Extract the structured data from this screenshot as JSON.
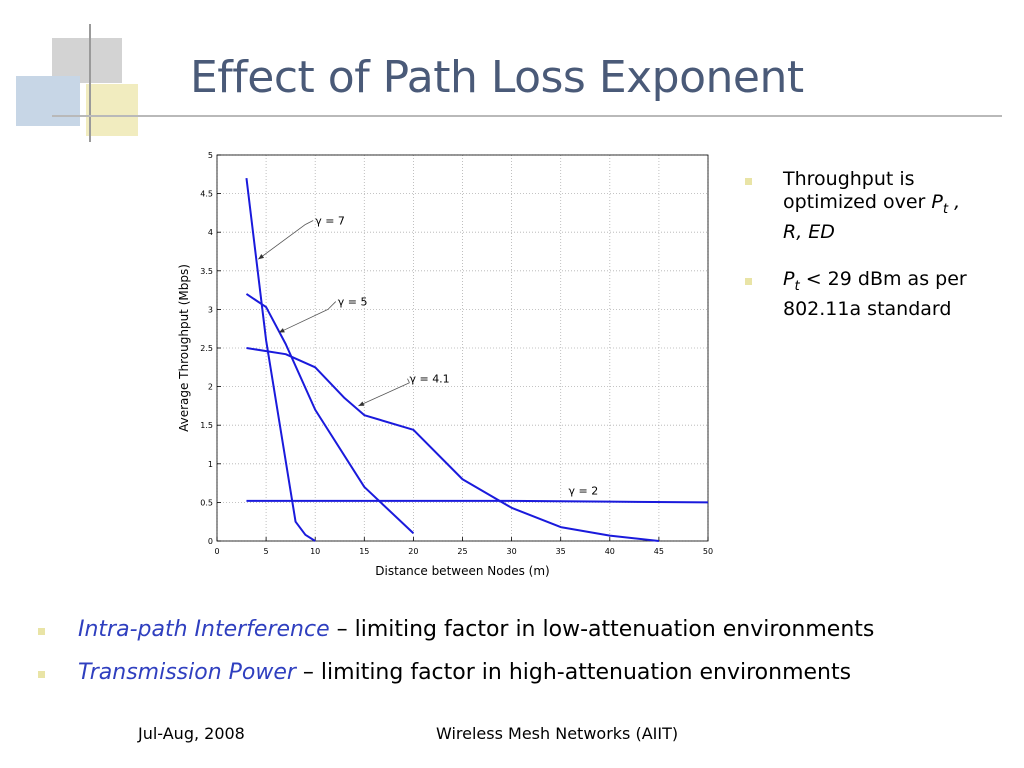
{
  "slide": {
    "title": "Effect of Path Loss Exponent"
  },
  "bullets_right": [
    {
      "text": "Throughput is optimized over "
    },
    {
      "text": " < 29 dBm as per 802.11a standard"
    }
  ],
  "bullets_right_math": {
    "p": "P",
    "t": "t",
    "rest": " , R, ED"
  },
  "bullets_bottom": [
    {
      "emphasis": "Intra-path Interference",
      "text": " – limiting factor in low-attenuation environments"
    },
    {
      "emphasis": "Transmission Power",
      "text": " – limiting factor in high-attenuation environments"
    }
  ],
  "footer": {
    "left": "Jul-Aug, 2008",
    "center": "Wireless Mesh Networks (AIIT)"
  },
  "colors": {
    "title": "#4a5a78",
    "line": "#1a1adc",
    "bullet_square": "#e9e4a6",
    "emphasis": "#2f3fbf"
  },
  "chart_data": {
    "type": "line",
    "xlabel": "Distance between Nodes (m)",
    "ylabel": "Average Throughput (Mbps)",
    "xlim": [
      0,
      50
    ],
    "ylim": [
      0,
      5
    ],
    "xticks": [
      0,
      5,
      10,
      15,
      20,
      25,
      30,
      35,
      40,
      45,
      50
    ],
    "yticks": [
      0,
      0.5,
      1,
      1.5,
      2,
      2.5,
      3,
      3.5,
      4,
      4.5,
      5
    ],
    "grid": true,
    "series": [
      {
        "name": "γ = 7",
        "x": [
          3,
          5,
          8,
          9,
          10
        ],
        "y": [
          4.7,
          2.6,
          0.25,
          0.08,
          0.0
        ]
      },
      {
        "name": "γ = 5",
        "x": [
          3,
          5,
          7,
          10,
          15,
          20
        ],
        "y": [
          3.2,
          3.03,
          2.55,
          1.7,
          0.7,
          0.1
        ]
      },
      {
        "name": "γ = 4.1",
        "x": [
          3,
          7,
          10,
          13,
          15,
          20,
          25,
          30,
          35,
          40,
          45
        ],
        "y": [
          2.5,
          2.42,
          2.25,
          1.85,
          1.63,
          1.44,
          0.8,
          0.43,
          0.18,
          0.07,
          0.0
        ]
      },
      {
        "name": "γ = 2",
        "x": [
          3,
          20,
          30,
          40,
          50
        ],
        "y": [
          0.52,
          0.52,
          0.52,
          0.51,
          0.5
        ]
      }
    ],
    "annotations": [
      {
        "text": "γ = 7",
        "label_at": [
          10,
          4.1
        ],
        "elbow": [
          9,
          4.1
        ],
        "arrow_to": [
          4.2,
          3.65
        ]
      },
      {
        "text": "γ = 5",
        "label_at": [
          12.3,
          3.05
        ],
        "elbow": [
          11.3,
          3.0
        ],
        "arrow_to": [
          6.3,
          2.7
        ]
      },
      {
        "text": "γ = 4.1",
        "label_at": [
          19.6,
          2.05
        ],
        "elbow": [
          19.6,
          2.05
        ],
        "arrow_to": [
          14.4,
          1.75
        ]
      },
      {
        "text": "γ = 2",
        "label_at": [
          35.8,
          0.6
        ]
      }
    ]
  }
}
